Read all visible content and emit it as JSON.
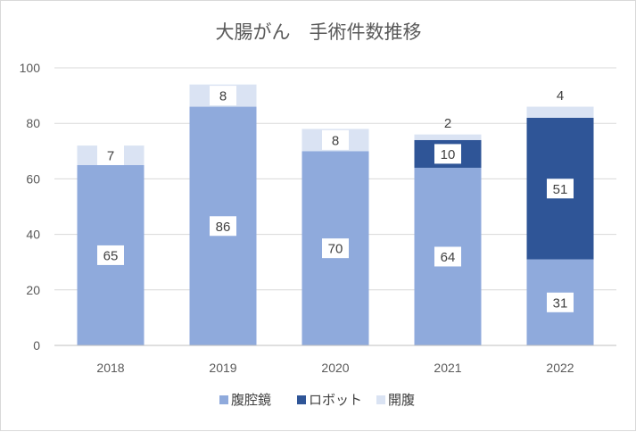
{
  "chart_data": {
    "type": "bar",
    "stacked": true,
    "title": "大腸がん　手術件数推移",
    "categories": [
      "2018",
      "2019",
      "2020",
      "2021",
      "2022"
    ],
    "series": [
      {
        "name": "腹腔鏡",
        "color": "#8faadc",
        "values": [
          65,
          86,
          70,
          64,
          31
        ],
        "labels": [
          "65",
          "86",
          "70",
          "64",
          "31"
        ]
      },
      {
        "name": "ロボット",
        "color": "#2f5597",
        "values": [
          0,
          0,
          0,
          10,
          51
        ],
        "labels": [
          "",
          "",
          "",
          "10",
          "51"
        ]
      },
      {
        "name": "開腹",
        "color": "#dae3f3",
        "values": [
          7,
          8,
          8,
          2,
          4
        ],
        "labels": [
          "7",
          "8",
          "8",
          "2",
          "4"
        ]
      }
    ],
    "ylim": [
      0,
      100
    ],
    "yticks": [
      "0",
      "20",
      "40",
      "60",
      "80",
      "100"
    ],
    "grid": true,
    "legend_position": "bottom"
  }
}
